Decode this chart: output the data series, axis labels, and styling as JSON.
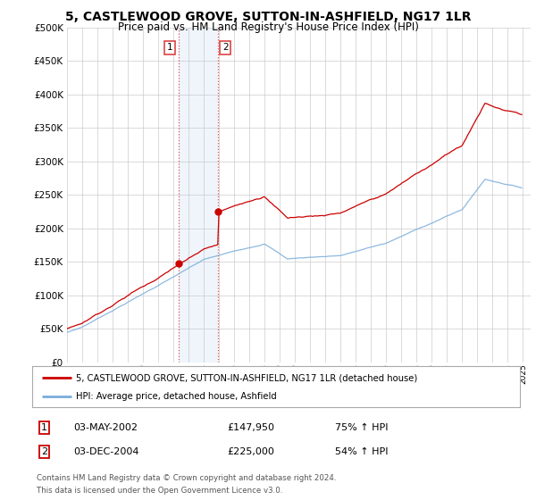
{
  "title": "5, CASTLEWOOD GROVE, SUTTON-IN-ASHFIELD, NG17 1LR",
  "subtitle": "Price paid vs. HM Land Registry's House Price Index (HPI)",
  "title_fontsize": 10,
  "subtitle_fontsize": 8.5,
  "ylim": [
    0,
    500000
  ],
  "yticks": [
    0,
    50000,
    100000,
    150000,
    200000,
    250000,
    300000,
    350000,
    400000,
    450000,
    500000
  ],
  "sale1_date_x": 2002.34,
  "sale1_price": 147950,
  "sale1_date_str": "03-MAY-2002",
  "sale1_price_str": "£147,950",
  "sale1_hpi_str": "75% ↑ HPI",
  "sale2_date_x": 2004.92,
  "sale2_price": 225000,
  "sale2_date_str": "03-DEC-2004",
  "sale2_price_str": "£225,000",
  "sale2_hpi_str": "54% ↑ HPI",
  "legend_entry1": "5, CASTLEWOOD GROVE, SUTTON-IN-ASHFIELD, NG17 1LR (detached house)",
  "legend_entry2": "HPI: Average price, detached house, Ashfield",
  "footer1": "Contains HM Land Registry data © Crown copyright and database right 2024.",
  "footer2": "This data is licensed under the Open Government Licence v3.0.",
  "line1_color": "#cc0000",
  "line2_color": "#7aaddb",
  "shade_color": "#ddeeff",
  "vline_color": "#dd4444",
  "background_color": "#ffffff",
  "grid_color": "#cccccc",
  "xmin": 1995,
  "xmax": 2025.5
}
